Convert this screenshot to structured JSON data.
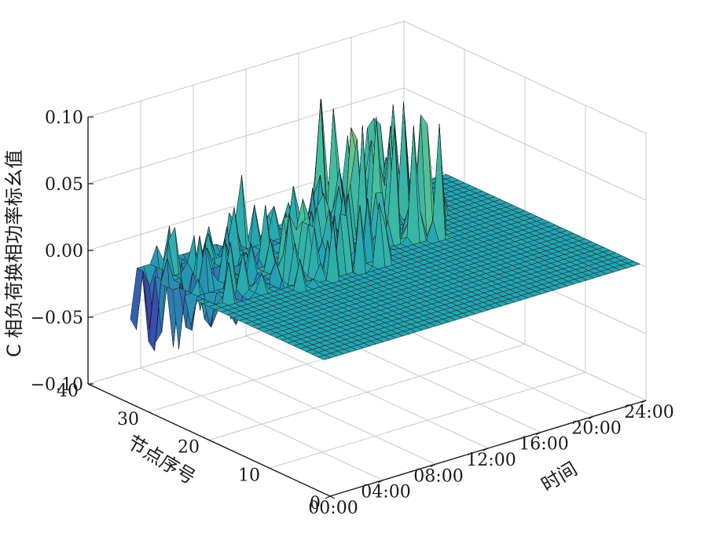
{
  "chart_data": {
    "type": "surface3d",
    "title": "",
    "xlabel": "时间",
    "ylabel": "节点序号",
    "zlabel": "C 相负荷换相功率标幺值",
    "x_ticks": [
      "00:00",
      "04:00",
      "08:00",
      "12:00",
      "16:00",
      "20:00",
      "24:00"
    ],
    "y_ticks": [
      "0",
      "10",
      "20",
      "30",
      "40"
    ],
    "z_ticks": [
      "−0.10",
      "−0.05",
      "0.00",
      "0.05",
      "0.10"
    ],
    "xlim": [
      0,
      24
    ],
    "ylim": [
      0,
      40
    ],
    "zlim": [
      -0.1,
      0.1
    ],
    "grid": true,
    "surface_extent": {
      "time_hours": [
        0,
        24
      ],
      "nodes": [
        1,
        33
      ]
    },
    "nonzero_regions": [
      {
        "time_hours": [
          0,
          1
        ],
        "nodes": [
          23,
          33
        ],
        "min": -0.054,
        "max": 0.03
      },
      {
        "time_hours": [
          1,
          5
        ],
        "nodes": [
          20,
          33
        ],
        "min": -0.03,
        "max": 0.035
      },
      {
        "time_hours": [
          5,
          13
        ],
        "nodes": [
          18,
          33
        ],
        "min": -0.02,
        "max": 0.05
      },
      {
        "time_hours": [
          13,
          18
        ],
        "nodes": [
          20,
          33
        ],
        "min": 0.0,
        "max": 0.09
      },
      {
        "time_hours": [
          18,
          20
        ],
        "nodes": [
          25,
          33
        ],
        "min": 0.0,
        "max": 0.07
      }
    ],
    "colors": {
      "low": "#3e3cb0",
      "zero": "#22a6b3",
      "mid": "#48c29b",
      "high": "#d8b946",
      "grid": "#c8c8c8",
      "axis": "#1a1a1a",
      "mesh_edge": "#1a1a1a"
    }
  }
}
